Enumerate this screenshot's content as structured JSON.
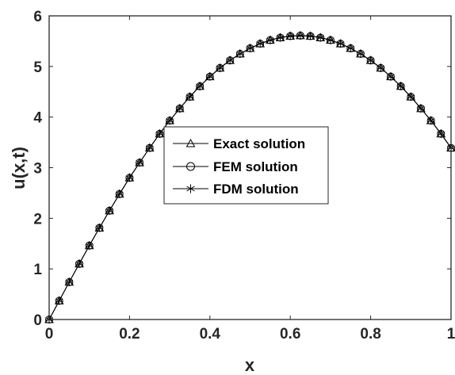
{
  "chart_data": {
    "type": "line",
    "title": "",
    "xlabel": "x",
    "ylabel": "u(x,t)",
    "xlim": [
      0,
      1
    ],
    "ylim": [
      0,
      6
    ],
    "xticks": [
      0,
      0.2,
      0.4,
      0.6,
      0.8,
      1
    ],
    "xtick_labels": [
      "0",
      "0.2",
      "0.4",
      "0.6",
      "0.8",
      "1"
    ],
    "yticks": [
      0,
      1,
      2,
      3,
      4,
      5,
      6
    ],
    "ytick_labels": [
      "0",
      "1",
      "2",
      "3",
      "4",
      "5",
      "6"
    ],
    "grid": false,
    "box": true,
    "legend_position": "center",
    "x": [
      0,
      0.025,
      0.05,
      0.075,
      0.1,
      0.125,
      0.15,
      0.175,
      0.2,
      0.225,
      0.25,
      0.275,
      0.3,
      0.325,
      0.35,
      0.375,
      0.4,
      0.425,
      0.45,
      0.475,
      0.5,
      0.525,
      0.55,
      0.575,
      0.6,
      0.625,
      0.65,
      0.675,
      0.7,
      0.725,
      0.75,
      0.775,
      0.8,
      0.825,
      0.85,
      0.875,
      0.9,
      0.925,
      0.95,
      0.975,
      1
    ],
    "series": [
      {
        "name": "Exact solution",
        "marker": "triangle",
        "values": [
          0,
          0.37,
          0.74,
          1.1,
          1.46,
          1.81,
          2.15,
          2.48,
          2.8,
          3.1,
          3.39,
          3.67,
          3.93,
          4.17,
          4.4,
          4.61,
          4.8,
          4.97,
          5.12,
          5.25,
          5.36,
          5.45,
          5.52,
          5.57,
          5.6,
          5.61,
          5.6,
          5.57,
          5.52,
          5.45,
          5.36,
          5.25,
          5.12,
          4.97,
          4.8,
          4.61,
          4.4,
          4.17,
          3.93,
          3.67,
          3.39
        ]
      },
      {
        "name": "FEM solution",
        "marker": "circle",
        "values": [
          0,
          0.37,
          0.74,
          1.1,
          1.46,
          1.81,
          2.15,
          2.48,
          2.8,
          3.1,
          3.39,
          3.67,
          3.93,
          4.17,
          4.4,
          4.61,
          4.8,
          4.97,
          5.12,
          5.25,
          5.36,
          5.45,
          5.52,
          5.57,
          5.6,
          5.61,
          5.6,
          5.57,
          5.52,
          5.45,
          5.36,
          5.25,
          5.12,
          4.97,
          4.8,
          4.61,
          4.4,
          4.17,
          3.93,
          3.67,
          3.39
        ]
      },
      {
        "name": "FDM solution",
        "marker": "asterisk",
        "values": [
          0,
          0.37,
          0.74,
          1.1,
          1.46,
          1.81,
          2.15,
          2.48,
          2.8,
          3.1,
          3.39,
          3.67,
          3.93,
          4.17,
          4.4,
          4.61,
          4.8,
          4.97,
          5.12,
          5.25,
          5.36,
          5.45,
          5.52,
          5.57,
          5.6,
          5.61,
          5.6,
          5.57,
          5.52,
          5.45,
          5.36,
          5.25,
          5.12,
          4.97,
          4.8,
          4.61,
          4.4,
          4.17,
          3.93,
          3.67,
          3.39
        ]
      }
    ],
    "colors": {
      "line": "#000000",
      "axis": "#262626",
      "background": "#ffffff"
    }
  }
}
